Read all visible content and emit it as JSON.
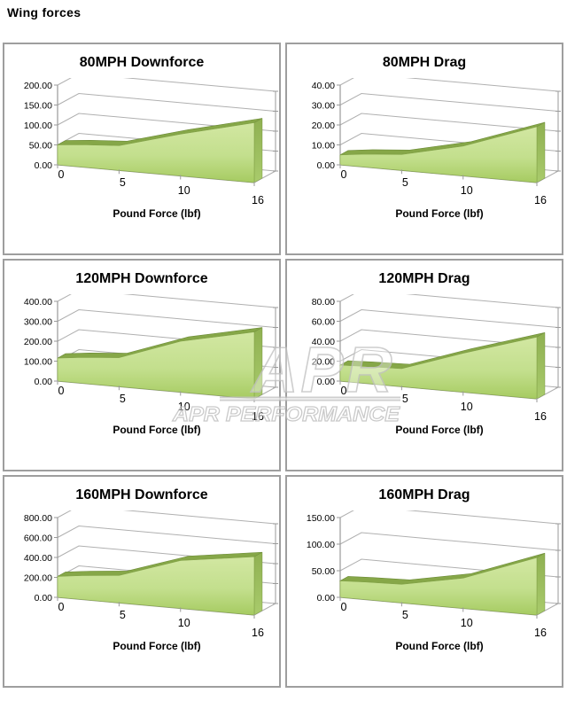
{
  "page": {
    "heading": "Wing forces"
  },
  "watermark": {
    "logo_text": "APR",
    "brand_text": "APR PERFORMANCE"
  },
  "colors": {
    "area_fill_top": "#d2e7a2",
    "area_fill_mid": "#c3df8d",
    "area_fill_bottom": "#a6cb61",
    "ridge": "#86a748",
    "ridge_edge": "#6d8c39",
    "side_top": "#8fb051",
    "side_bottom": "#a9cb6c",
    "front_edge": "#85a54a",
    "grid_line": "#b0b0b0",
    "axis_line": "#9a9a9a",
    "cell_border": "#9e9e9e",
    "watermark_gray": "#c2c2c2",
    "text": "#000000"
  },
  "chart_data": [
    {
      "type": "area",
      "title": "80MPH Downforce",
      "xlabel": "Pound Force (lbf)",
      "x": [
        0,
        2,
        5,
        10,
        16
      ],
      "values": [
        50,
        56,
        62,
        105,
        150
      ],
      "x_tick_labels": [
        "0",
        "5",
        "10",
        "16"
      ],
      "x_tick_values": [
        0,
        5,
        10,
        16
      ],
      "y_tick_labels": [
        "0.00",
        "50.00",
        "100.00",
        "150.00",
        "200.00"
      ],
      "xlim": [
        0,
        16
      ],
      "ylim": [
        0,
        200
      ]
    },
    {
      "type": "area",
      "title": "80MPH Drag",
      "xlabel": "Pound Force (lbf)",
      "x": [
        0,
        2,
        5,
        10,
        16
      ],
      "values": [
        5,
        6.5,
        8,
        15,
        28
      ],
      "x_tick_labels": [
        "0",
        "5",
        "10",
        "16"
      ],
      "x_tick_values": [
        0,
        5,
        10,
        16
      ],
      "y_tick_labels": [
        "0.00",
        "10.00",
        "20.00",
        "30.00",
        "40.00"
      ],
      "xlim": [
        0,
        16
      ],
      "ylim": [
        0,
        40
      ]
    },
    {
      "type": "area",
      "title": "120MPH Downforce",
      "xlabel": "Pound Force (lbf)",
      "x": [
        0,
        2,
        5,
        10,
        16
      ],
      "values": [
        115,
        130,
        145,
        255,
        335
      ],
      "x_tick_labels": [
        "0",
        "5",
        "10",
        "16"
      ],
      "x_tick_values": [
        0,
        5,
        10,
        16
      ],
      "y_tick_labels": [
        "0.00",
        "100.00",
        "200.00",
        "300.00",
        "400.00"
      ],
      "xlim": [
        0,
        16
      ],
      "ylim": [
        0,
        400
      ]
    },
    {
      "type": "area",
      "title": "120MPH Drag",
      "xlabel": "Pound Force (lbf)",
      "x": [
        0,
        2,
        5,
        10,
        16
      ],
      "values": [
        16,
        17,
        18,
        39,
        62
      ],
      "x_tick_labels": [
        "0",
        "5",
        "10",
        "16"
      ],
      "x_tick_values": [
        0,
        5,
        10,
        16
      ],
      "y_tick_labels": [
        "0.00",
        "20.00",
        "40.00",
        "60.00",
        "80.00"
      ],
      "xlim": [
        0,
        16
      ],
      "ylim": [
        0,
        80
      ]
    },
    {
      "type": "area",
      "title": "160MPH Downforce",
      "xlabel": "Pound Force (lbf)",
      "x": [
        0,
        2,
        5,
        10,
        16
      ],
      "values": [
        210,
        240,
        275,
        480,
        585
      ],
      "x_tick_labels": [
        "0",
        "5",
        "10",
        "16"
      ],
      "x_tick_values": [
        0,
        5,
        10,
        16
      ],
      "y_tick_labels": [
        "0.00",
        "200.00",
        "400.00",
        "600.00",
        "800.00"
      ],
      "xlim": [
        0,
        16
      ],
      "ylim": [
        0,
        800
      ]
    },
    {
      "type": "area",
      "title": "160MPH Drag",
      "xlabel": "Pound Force (lbf)",
      "x": [
        0,
        2,
        5,
        10,
        16
      ],
      "values": [
        31,
        33,
        35,
        57,
        108
      ],
      "x_tick_labels": [
        "0",
        "5",
        "10",
        "16"
      ],
      "x_tick_values": [
        0,
        5,
        10,
        16
      ],
      "y_tick_labels": [
        "0.00",
        "50.00",
        "100.00",
        "150.00"
      ],
      "xlim": [
        0,
        16
      ],
      "ylim": [
        0,
        150
      ]
    }
  ]
}
